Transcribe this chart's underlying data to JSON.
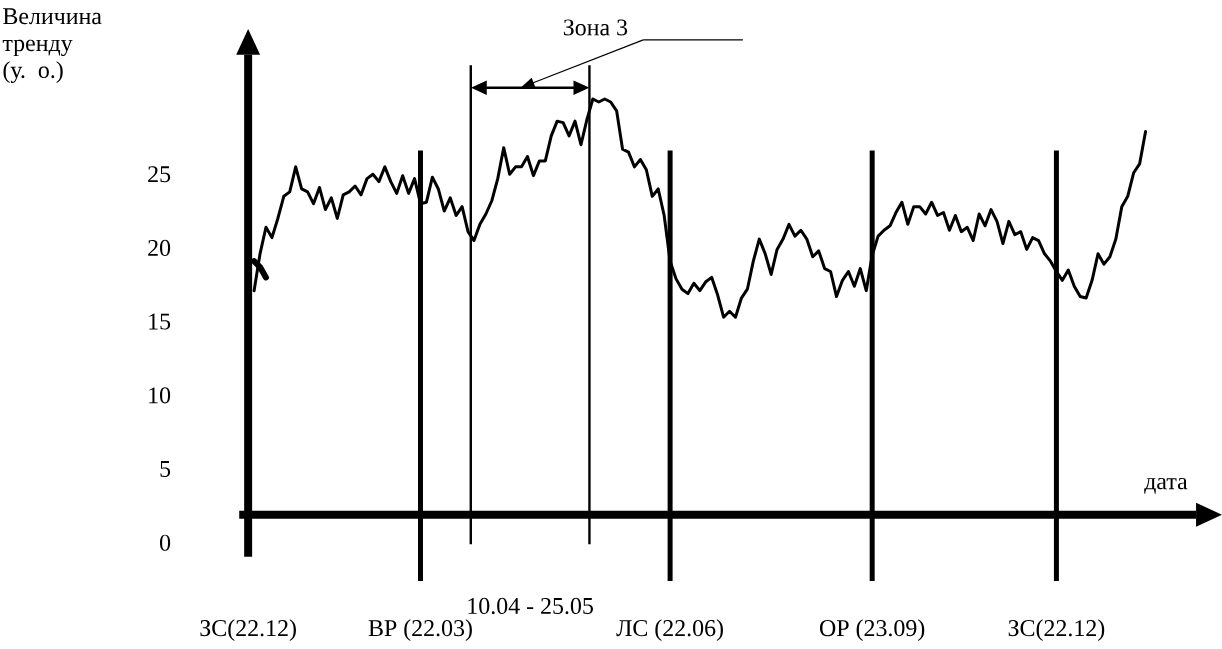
{
  "chart_data": {
    "type": "line",
    "ylabel": "Величина тренду (у. о.)",
    "xlabel": "дата",
    "annotations": [
      "Зона 3",
      "10.04 - 25.05"
    ],
    "ylim": [
      -2.6,
      33.1
    ],
    "yticks": [
      0,
      5,
      10,
      15,
      20,
      25
    ],
    "categories": [
      "ЗС(22.12)",
      null,
      null,
      null,
      null,
      null,
      null,
      null,
      null,
      null,
      null,
      null,
      null,
      null,
      null,
      null,
      null,
      null,
      null,
      null,
      null,
      null,
      null,
      null,
      null,
      null,
      null,
      null,
      null,
      "ВР (22.03)",
      null,
      null,
      null,
      null,
      null,
      null,
      null,
      null,
      null,
      null,
      null,
      null,
      null,
      null,
      null,
      null,
      null,
      null,
      null,
      null,
      null,
      null,
      null,
      null,
      null,
      null,
      null,
      null,
      null,
      null,
      null,
      null,
      null,
      null,
      null,
      null,
      null,
      null,
      null,
      null,
      null,
      "ЛС (22.06)",
      null,
      null,
      null,
      null,
      null,
      null,
      null,
      null,
      null,
      null,
      null,
      null,
      null,
      null,
      null,
      null,
      null,
      null,
      null,
      null,
      null,
      null,
      null,
      null,
      null,
      null,
      null,
      null,
      null,
      null,
      null,
      null,
      null,
      "ОР (23.09)",
      null,
      null,
      null,
      null,
      null,
      null,
      null,
      null,
      null,
      null,
      null,
      null,
      null,
      null,
      null,
      null,
      null,
      null,
      null,
      null,
      null,
      null,
      null,
      null,
      null,
      null,
      null,
      null,
      null,
      null,
      "ЗС(22.12)",
      null,
      null,
      null,
      null,
      null,
      null,
      null,
      null,
      null,
      null,
      null,
      null,
      null,
      null,
      null
    ],
    "ref_lines": [
      {
        "axis": "y",
        "value": 1.9
      }
    ],
    "marker": "none",
    "line_style": "solid",
    "series": [
      {
        "color": "#000000",
        "values": [
          null,
          17.1,
          19.6,
          21.4,
          20.7,
          22.0,
          23.5,
          23.8,
          25.5,
          24.0,
          23.8,
          23.0,
          24.1,
          22.6,
          23.4,
          22.0,
          23.6,
          23.8,
          24.2,
          23.6,
          24.7,
          25.0,
          24.5,
          25.5,
          24.5,
          23.7,
          24.9,
          23.7,
          24.7,
          23.0,
          23.1,
          24.8,
          24.0,
          22.5,
          23.4,
          22.2,
          22.8,
          21.1,
          20.5,
          21.6,
          22.3,
          23.2,
          24.7,
          26.8,
          25.0,
          25.5,
          25.5,
          26.2,
          24.9,
          25.9,
          25.9,
          27.6,
          28.6,
          28.5,
          27.6,
          28.6,
          27.0,
          28.7,
          30.1,
          29.9,
          30.1,
          29.9,
          29.3,
          26.7,
          26.5,
          25.5,
          26.0,
          25.3,
          23.5,
          24.0,
          22.2,
          19.1,
          17.9,
          17.2,
          16.9,
          17.6,
          17.1,
          17.7,
          18.0,
          16.8,
          15.3,
          15.7,
          15.3,
          16.6,
          17.2,
          19.1,
          20.6,
          19.6,
          18.2,
          19.9,
          20.6,
          21.6,
          20.8,
          21.2,
          20.6,
          19.4,
          19.8,
          18.6,
          18.4,
          16.7,
          17.8,
          18.4,
          17.4,
          18.6,
          17.1,
          19.5,
          20.8,
          21.2,
          21.5,
          22.4,
          23.1,
          21.6,
          22.8,
          22.8,
          22.3,
          23.1,
          22.2,
          22.4,
          21.2,
          22.2,
          21.1,
          21.4,
          20.5,
          22.3,
          21.5,
          22.6,
          21.8,
          20.3,
          21.8,
          20.9,
          21.1,
          19.9,
          20.7,
          20.5,
          19.6,
          19.1,
          18.4,
          17.8,
          18.5,
          17.4,
          16.7,
          16.6,
          17.8,
          19.6,
          18.9,
          19.4,
          20.6,
          22.8,
          23.5,
          25.1,
          25.7,
          27.9
        ]
      },
      {
        "color": "#000000",
        "values": [
          null,
          19.1,
          18.7,
          18.0,
          null,
          null,
          null,
          null,
          null,
          null,
          null,
          null,
          null,
          null,
          null,
          null,
          null,
          null,
          null,
          null,
          null,
          null,
          null,
          null,
          null,
          null,
          null,
          null,
          null,
          null,
          null,
          null,
          null,
          null,
          null,
          null,
          null,
          null,
          null,
          null,
          null,
          null,
          null,
          null,
          null,
          null,
          null,
          null,
          null,
          null,
          null,
          null,
          null,
          null,
          null,
          null,
          null,
          null,
          null,
          null,
          null,
          null,
          null,
          null,
          null,
          null,
          null,
          null,
          null,
          null,
          null,
          null,
          null,
          null,
          null,
          null,
          null,
          null,
          null,
          null,
          null,
          null,
          null,
          null,
          null,
          null,
          null,
          null,
          null,
          null,
          null,
          null,
          null,
          null,
          null,
          null,
          null,
          null,
          null,
          null,
          null,
          null,
          null,
          null,
          null,
          null,
          null,
          null,
          null,
          null,
          null,
          null,
          null,
          null,
          null,
          null,
          null,
          null,
          null,
          null,
          null,
          null,
          null,
          null,
          null,
          null,
          null,
          null,
          null,
          null,
          null,
          null,
          null,
          null,
          null,
          null,
          null,
          null,
          null,
          null,
          null,
          null,
          null,
          null,
          null,
          null,
          null,
          null,
          null,
          null,
          null,
          null
        ]
      }
    ]
  }
}
